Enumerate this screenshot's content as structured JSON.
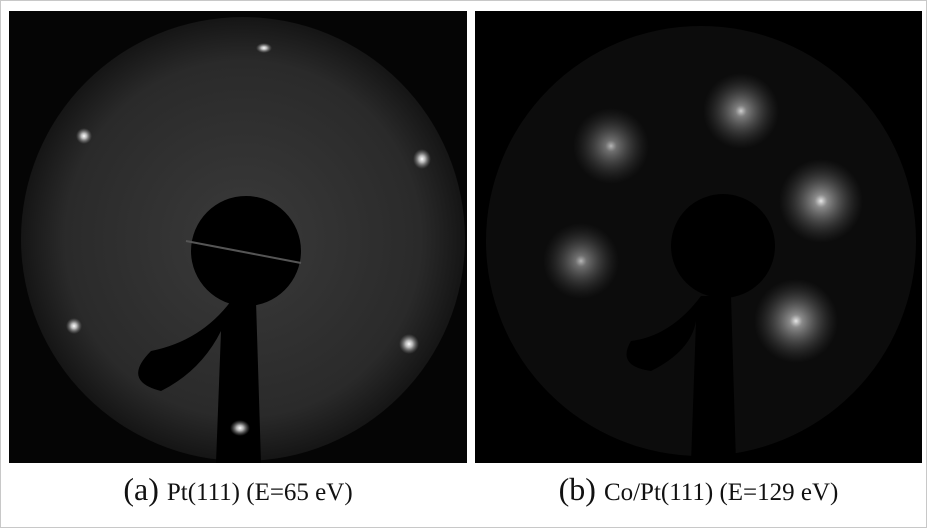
{
  "panels": [
    {
      "label": "(a)",
      "caption": "Pt(111) (E=65 eV)"
    },
    {
      "label": "(b)",
      "caption": "Co/Pt(111) (E=129 eV)"
    }
  ]
}
